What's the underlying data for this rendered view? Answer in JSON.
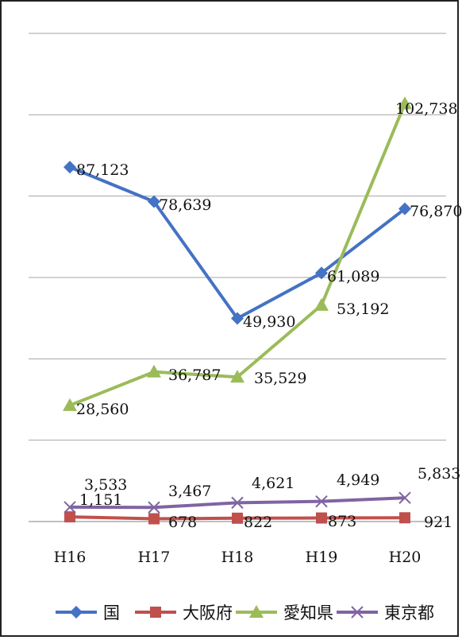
{
  "chart_data": {
    "type": "line",
    "categories": [
      "H16",
      "H17",
      "H18",
      "H19",
      "H20"
    ],
    "series": [
      {
        "name": "国",
        "color": "#4472c4",
        "marker": "diamond",
        "values": [
          87123,
          78639,
          49930,
          61089,
          76870
        ],
        "labels": [
          "87,123",
          "78,639",
          "49,930",
          "61,089",
          "76,870"
        ]
      },
      {
        "name": "大阪府",
        "color": "#c0504d",
        "marker": "square",
        "values": [
          1151,
          678,
          822,
          873,
          921
        ],
        "labels": [
          "1,151",
          "678",
          "822",
          "873",
          "921"
        ]
      },
      {
        "name": "愛知県",
        "color": "#9bbb59",
        "marker": "triangle",
        "values": [
          28560,
          36787,
          35529,
          53192,
          102738
        ],
        "labels": [
          "28,560",
          "36,787",
          "35,529",
          "53,192",
          "102,738"
        ]
      },
      {
        "name": "東京都",
        "color": "#8064a2",
        "marker": "x",
        "values": [
          3533,
          3467,
          4621,
          4949,
          5833
        ],
        "labels": [
          "3,533",
          "3,467",
          "4,621",
          "4,949",
          "5,833"
        ]
      }
    ],
    "ylim": [
      0,
      120000
    ],
    "ytick_step": 20000,
    "grid": true,
    "legend_position": "bottom",
    "title": "",
    "xlabel": "",
    "ylabel": ""
  }
}
